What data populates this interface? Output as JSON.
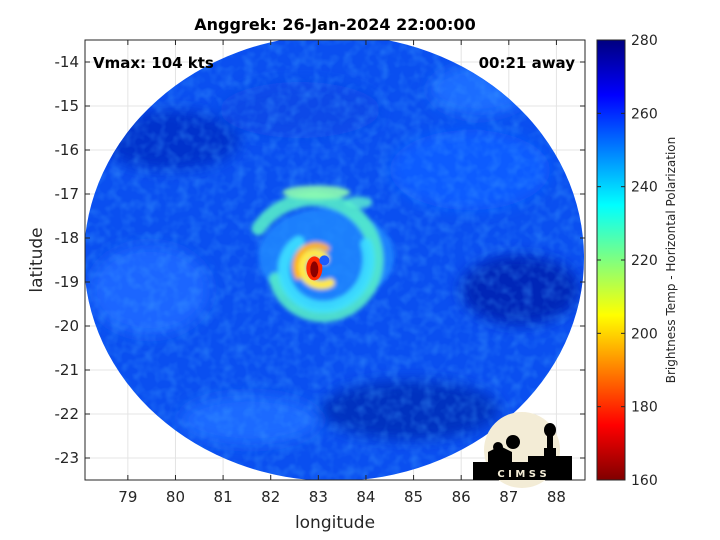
{
  "chart_data": {
    "type": "heatmap",
    "title": "Anggrek: 26-Jan-2024 22:00:00",
    "xlabel": "longitude",
    "ylabel": "latitude",
    "xlim": [
      78.1,
      88.6
    ],
    "ylim": [
      -23.5,
      -13.5
    ],
    "x_ticks": [
      "79",
      "80",
      "81",
      "82",
      "83",
      "84",
      "85",
      "86",
      "87",
      "88"
    ],
    "y_ticks": [
      "-14",
      "-15",
      "-16",
      "-17",
      "-18",
      "-19",
      "-20",
      "-21",
      "-22",
      "-23"
    ],
    "grid": true,
    "colormap": "jet",
    "colorbar": {
      "label": "Brightness Temp - Horizontal Polarization",
      "range": [
        160,
        280
      ],
      "ticks": [
        "280",
        "260",
        "240",
        "220",
        "200",
        "180",
        "160"
      ]
    },
    "storm_center": {
      "lon": 83.0,
      "lat": -18.6
    },
    "field_description": "cold ring about the storm centre, spiral rain bands, warm background",
    "annotations": {
      "vmax": "Vmax: 104 kts",
      "time_away": "00:21 away"
    }
  },
  "logo": {
    "text": "C I M S S"
  }
}
